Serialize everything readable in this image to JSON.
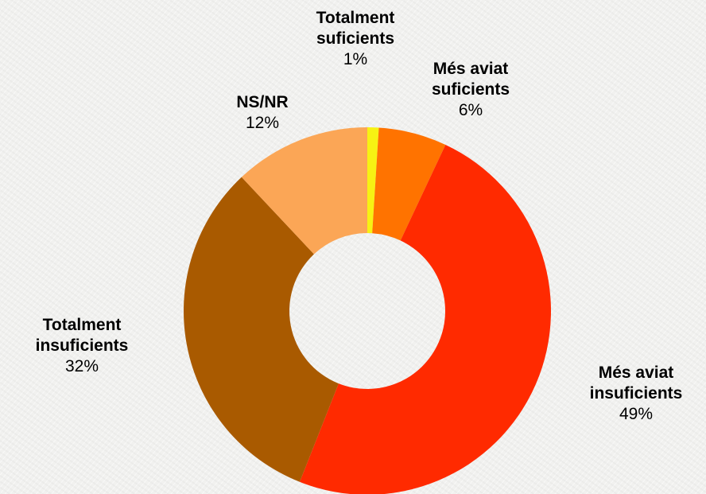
{
  "chart_data": {
    "type": "donut",
    "categories": [
      "Totalment suficients",
      "Més aviat suficients",
      "Més aviat insuficients",
      "Totalment insuficients",
      "NS/NR"
    ],
    "values": [
      1,
      6,
      49,
      32,
      12
    ],
    "value_labels": [
      "1%",
      "6%",
      "49%",
      "32%",
      "12%"
    ],
    "colors": [
      "#f7f213",
      "#ff7300",
      "#ff2a00",
      "#a95a00",
      "#fba656"
    ]
  }
}
